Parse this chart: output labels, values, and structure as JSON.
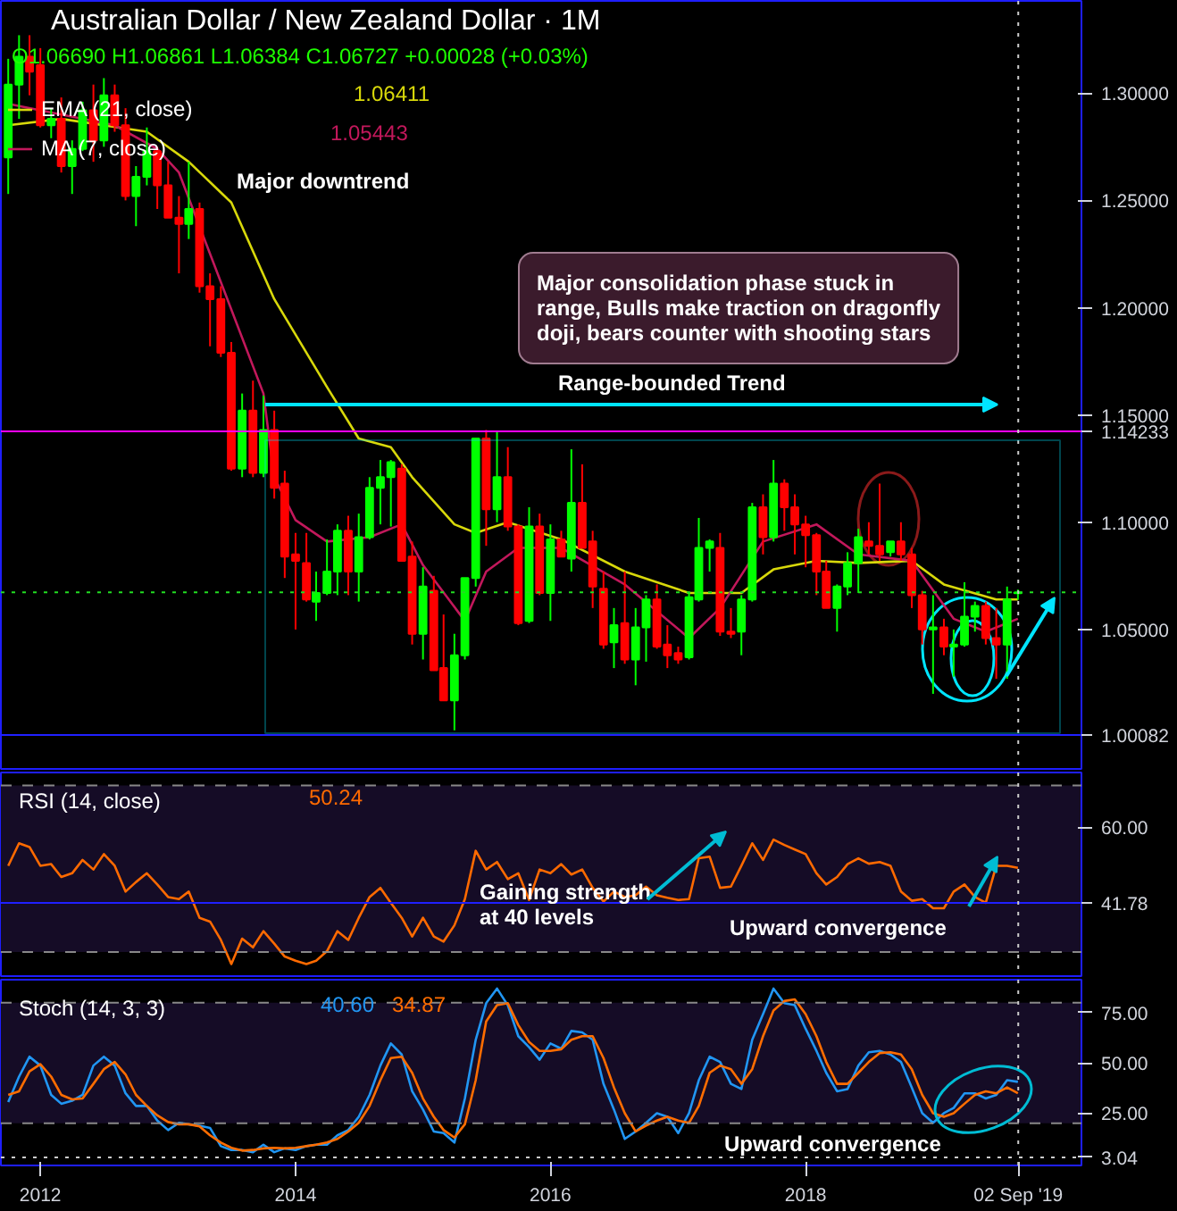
{
  "chart_data": [
    {
      "type": "candlestick",
      "title": "Australian Dollar / New Zealand Dollar · 1M",
      "subtitle": "O1.06690 H1.06861 L1.06384 C1.06727 +0.00028 (+0.03%)",
      "x": [
        "2011-10",
        "2011-11",
        "2011-12",
        "2012-01",
        "2012-02",
        "2012-03",
        "2012-04",
        "2012-05",
        "2012-06",
        "2012-07",
        "2012-08",
        "2012-09",
        "2012-10",
        "2012-11",
        "2012-12",
        "2013-01",
        "2013-02",
        "2013-03",
        "2013-04",
        "2013-05",
        "2013-06",
        "2013-07",
        "2013-08",
        "2013-09",
        "2013-10",
        "2013-11",
        "2013-12",
        "2014-01",
        "2014-02",
        "2014-03",
        "2014-04",
        "2014-05",
        "2014-06",
        "2014-07",
        "2014-08",
        "2014-09",
        "2014-10",
        "2014-11",
        "2014-12",
        "2015-01",
        "2015-02",
        "2015-03",
        "2015-04",
        "2015-05",
        "2015-06",
        "2015-07",
        "2015-08",
        "2015-09",
        "2015-10",
        "2015-11",
        "2015-12",
        "2016-01",
        "2016-02",
        "2016-03",
        "2016-04",
        "2016-05",
        "2016-06",
        "2016-07",
        "2016-08",
        "2016-09",
        "2016-10",
        "2016-11",
        "2016-12",
        "2017-01",
        "2017-02",
        "2017-03",
        "2017-04",
        "2017-05",
        "2017-06",
        "2017-07",
        "2017-08",
        "2017-09",
        "2017-10",
        "2017-11",
        "2017-12",
        "2018-01",
        "2018-02",
        "2018-03",
        "2018-04",
        "2018-05",
        "2018-06",
        "2018-07",
        "2018-08",
        "2018-09",
        "2018-10",
        "2018-11",
        "2018-12",
        "2019-01",
        "2019-02",
        "2019-03",
        "2019-04",
        "2019-05",
        "2019-06",
        "2019-07",
        "2019-08",
        "2019-09"
      ],
      "ohlc": [
        [
          1.27,
          1.316,
          1.253,
          1.304
        ],
        [
          1.304,
          1.327,
          1.288,
          1.317
        ],
        [
          1.317,
          1.327,
          1.299,
          1.31
        ],
        [
          1.313,
          1.321,
          1.284,
          1.285
        ],
        [
          1.285,
          1.293,
          1.279,
          1.288
        ],
        [
          1.288,
          1.298,
          1.263,
          1.266
        ],
        [
          1.266,
          1.278,
          1.253,
          1.274
        ],
        [
          1.274,
          1.296,
          1.273,
          1.292
        ],
        [
          1.292,
          1.304,
          1.268,
          1.278
        ],
        [
          1.278,
          1.307,
          1.275,
          1.299
        ],
        [
          1.299,
          1.304,
          1.282,
          1.285
        ],
        [
          1.285,
          1.293,
          1.25,
          1.252
        ],
        [
          1.252,
          1.266,
          1.238,
          1.261
        ],
        [
          1.261,
          1.284,
          1.257,
          1.273
        ],
        [
          1.273,
          1.275,
          1.246,
          1.257
        ],
        [
          1.257,
          1.268,
          1.242,
          1.242
        ],
        [
          1.242,
          1.252,
          1.216,
          1.239
        ],
        [
          1.239,
          1.268,
          1.232,
          1.246
        ],
        [
          1.246,
          1.249,
          1.207,
          1.21
        ],
        [
          1.21,
          1.216,
          1.182,
          1.204
        ],
        [
          1.204,
          1.21,
          1.177,
          1.179
        ],
        [
          1.179,
          1.184,
          1.124,
          1.125
        ],
        [
          1.125,
          1.16,
          1.121,
          1.152
        ],
        [
          1.152,
          1.166,
          1.121,
          1.123
        ],
        [
          1.123,
          1.159,
          1.121,
          1.143
        ],
        [
          1.143,
          1.152,
          1.111,
          1.116
        ],
        [
          1.118,
          1.124,
          1.074,
          1.084
        ],
        [
          1.085,
          1.095,
          1.05,
          1.082
        ],
        [
          1.081,
          1.095,
          1.063,
          1.064
        ],
        [
          1.063,
          1.077,
          1.054,
          1.067
        ],
        [
          1.067,
          1.092,
          1.066,
          1.077
        ],
        [
          1.077,
          1.099,
          1.066,
          1.096
        ],
        [
          1.096,
          1.103,
          1.066,
          1.077
        ],
        [
          1.077,
          1.104,
          1.063,
          1.093
        ],
        [
          1.093,
          1.121,
          1.092,
          1.116
        ],
        [
          1.116,
          1.129,
          1.099,
          1.121
        ],
        [
          1.121,
          1.129,
          1.098,
          1.128
        ],
        [
          1.125,
          1.127,
          1.082,
          1.082
        ],
        [
          1.084,
          1.091,
          1.043,
          1.048
        ],
        [
          1.048,
          1.079,
          1.036,
          1.07
        ],
        [
          1.068,
          1.075,
          1.031,
          1.031
        ],
        [
          1.032,
          1.057,
          1.017,
          1.017
        ],
        [
          1.017,
          1.048,
          1.003,
          1.038
        ],
        [
          1.038,
          1.074,
          1.036,
          1.074
        ],
        [
          1.074,
          1.139,
          1.07,
          1.139
        ],
        [
          1.139,
          1.143,
          1.089,
          1.106
        ],
        [
          1.106,
          1.142,
          1.1,
          1.121
        ],
        [
          1.121,
          1.135,
          1.096,
          1.098
        ],
        [
          1.098,
          1.099,
          1.052,
          1.053
        ],
        [
          1.054,
          1.107,
          1.053,
          1.098
        ],
        [
          1.098,
          1.104,
          1.066,
          1.067
        ],
        [
          1.067,
          1.099,
          1.054,
          1.092
        ],
        [
          1.092,
          1.096,
          1.084,
          1.084
        ],
        [
          1.083,
          1.134,
          1.077,
          1.109
        ],
        [
          1.109,
          1.127,
          1.088,
          1.088
        ],
        [
          1.091,
          1.096,
          1.06,
          1.07
        ],
        [
          1.069,
          1.077,
          1.041,
          1.043
        ],
        [
          1.044,
          1.06,
          1.032,
          1.052
        ],
        [
          1.053,
          1.077,
          1.034,
          1.036
        ],
        [
          1.036,
          1.06,
          1.024,
          1.051
        ],
        [
          1.051,
          1.066,
          1.035,
          1.064
        ],
        [
          1.064,
          1.071,
          1.041,
          1.042
        ],
        [
          1.043,
          1.052,
          1.032,
          1.038
        ],
        [
          1.039,
          1.042,
          1.034,
          1.036
        ],
        [
          1.037,
          1.067,
          1.036,
          1.065
        ],
        [
          1.064,
          1.102,
          1.063,
          1.088
        ],
        [
          1.088,
          1.092,
          1.077,
          1.091
        ],
        [
          1.088,
          1.095,
          1.047,
          1.049
        ],
        [
          1.049,
          1.06,
          1.046,
          1.048
        ],
        [
          1.049,
          1.066,
          1.038,
          1.064
        ],
        [
          1.064,
          1.109,
          1.063,
          1.107
        ],
        [
          1.107,
          1.113,
          1.085,
          1.093
        ],
        [
          1.093,
          1.129,
          1.091,
          1.118
        ],
        [
          1.118,
          1.12,
          1.096,
          1.107
        ],
        [
          1.107,
          1.113,
          1.085,
          1.099
        ],
        [
          1.099,
          1.103,
          1.079,
          1.094
        ],
        [
          1.094,
          1.095,
          1.066,
          1.077
        ],
        [
          1.077,
          1.082,
          1.06,
          1.06
        ],
        [
          1.06,
          1.071,
          1.049,
          1.07
        ],
        [
          1.07,
          1.086,
          1.066,
          1.081
        ],
        [
          1.081,
          1.097,
          1.067,
          1.093
        ],
        [
          1.091,
          1.1,
          1.085,
          1.089
        ],
        [
          1.089,
          1.118,
          1.082,
          1.085
        ],
        [
          1.086,
          1.091,
          1.084,
          1.091
        ],
        [
          1.091,
          1.1,
          1.082,
          1.085
        ],
        [
          1.085,
          1.088,
          1.06,
          1.066
        ],
        [
          1.066,
          1.068,
          1.043,
          1.05
        ],
        [
          1.05,
          1.066,
          1.02,
          1.051
        ],
        [
          1.051,
          1.055,
          1.038,
          1.042
        ],
        [
          1.042,
          1.05,
          1.028,
          1.043
        ],
        [
          1.043,
          1.072,
          1.042,
          1.056
        ],
        [
          1.056,
          1.063,
          1.049,
          1.061
        ],
        [
          1.061,
          1.063,
          1.043,
          1.046
        ],
        [
          1.046,
          1.06,
          1.027,
          1.043
        ],
        [
          1.043,
          1.07,
          1.027,
          1.064
        ],
        [
          1.0669,
          1.0686,
          1.0638,
          1.0673
        ]
      ],
      "colors": [
        "#00ff00",
        "#00ff00",
        "#ff0000",
        "#ff0000",
        "#00ff00",
        "#ff0000",
        "#00ff00",
        "#00ff00",
        "#ff0000",
        "#00ff00",
        "#ff0000",
        "#ff0000",
        "#00ff00",
        "#00ff00",
        "#ff0000",
        "#ff0000",
        "#ff0000",
        "#00ff00",
        "#ff0000",
        "#ff0000",
        "#ff0000",
        "#ff0000",
        "#00ff00",
        "#ff0000",
        "#00ff00",
        "#ff0000",
        "#ff0000",
        "#ff0000",
        "#ff0000",
        "#00ff00",
        "#00ff00",
        "#00ff00",
        "#ff0000",
        "#00ff00",
        "#00ff00",
        "#00ff00",
        "#00ff00",
        "#ff0000",
        "#ff0000",
        "#00ff00",
        "#ff0000",
        "#ff0000",
        "#00ff00",
        "#00ff00",
        "#00ff00",
        "#ff0000",
        "#00ff00",
        "#ff0000",
        "#ff0000",
        "#00ff00",
        "#ff0000",
        "#00ff00",
        "#ff0000",
        "#00ff00",
        "#ff0000",
        "#ff0000",
        "#ff0000",
        "#00ff00",
        "#ff0000",
        "#00ff00",
        "#00ff00",
        "#ff0000",
        "#ff0000",
        "#ff0000",
        "#00ff00",
        "#00ff00",
        "#00ff00",
        "#ff0000",
        "#ff0000",
        "#00ff00",
        "#00ff00",
        "#ff0000",
        "#00ff00",
        "#ff0000",
        "#ff0000",
        "#ff0000",
        "#ff0000",
        "#ff0000",
        "#00ff00",
        "#00ff00",
        "#00ff00",
        "#ff0000",
        "#ff0000",
        "#00ff00",
        "#ff0000",
        "#ff0000",
        "#ff0000",
        "#00ff00",
        "#ff0000",
        "#00ff00",
        "#00ff00",
        "#00ff00",
        "#ff0000",
        "#ff0000",
        "#00ff00",
        "#00ff00"
      ],
      "series": [
        {
          "name": "EMA (21, close)",
          "type": "line",
          "color": "#d8d80a",
          "x": [
            "2011-10",
            "2012-03",
            "2012-11",
            "2013-03",
            "2013-07",
            "2013-11",
            "2014-04",
            "2014-07",
            "2014-10",
            "2014-12",
            "2015-04",
            "2015-06",
            "2015-09",
            "2016-02",
            "2016-08",
            "2017-02",
            "2017-07",
            "2017-10",
            "2018-02",
            "2018-06",
            "2018-11",
            "2019-02",
            "2019-07",
            "2019-09"
          ],
          "values": [
            1.285,
            1.288,
            1.282,
            1.268,
            1.249,
            1.204,
            1.163,
            1.139,
            1.135,
            1.121,
            1.099,
            1.095,
            1.1,
            1.092,
            1.077,
            1.067,
            1.067,
            1.078,
            1.082,
            1.081,
            1.082,
            1.071,
            1.064,
            1.064
          ]
        },
        {
          "name": "MA (7, close)",
          "type": "line",
          "color": "#c2185b",
          "x": [
            "2011-10",
            "2012-03",
            "2012-08",
            "2012-12",
            "2013-02",
            "2013-10",
            "2013-11",
            "2014-01",
            "2014-04",
            "2014-08",
            "2014-11",
            "2015-01",
            "2015-05",
            "2015-07",
            "2015-10",
            "2016-02",
            "2016-08",
            "2017-02",
            "2017-05",
            "2017-09",
            "2018-02",
            "2018-06",
            "2018-11",
            "2019-03",
            "2019-06",
            "2019-09"
          ],
          "values": [
            1.295,
            1.29,
            1.285,
            1.274,
            1.263,
            1.16,
            1.121,
            1.101,
            1.091,
            1.093,
            1.099,
            1.08,
            1.054,
            1.077,
            1.088,
            1.088,
            1.071,
            1.046,
            1.06,
            1.091,
            1.099,
            1.085,
            1.082,
            1.055,
            1.049,
            1.055
          ]
        }
      ],
      "annotations": [
        "1.06411",
        "1.05443",
        "Major downtrend",
        "Range-bounded Trend",
        "Major consolidation phase stuck in range, Bulls make traction on dragonfly doji, bears counter with shooting stars"
      ],
      "ref_lines": [
        {
          "axis": "y",
          "value": 1.14233,
          "label": "1.14233",
          "color": "#ff00ff",
          "line_style": "solid"
        },
        {
          "axis": "y",
          "value": 1.00082,
          "label": "1.00082",
          "color": "#2020ff",
          "line_style": "solid"
        },
        {
          "axis": "y",
          "value": 1.06727,
          "color": "#22dd22",
          "line_style": "dotted"
        },
        {
          "axis": "x",
          "value": "2019-09-02",
          "color": "#cccccc",
          "line_style": "dotted"
        }
      ],
      "xlim": [
        "2011-09-10",
        "2020-03-01"
      ],
      "ylim": [
        0.985,
        1.343
      ],
      "yticks": [
        {
          "value": 1.05,
          "label": "1.05000"
        },
        {
          "value": 1.1,
          "label": "1.10000"
        },
        {
          "value": 1.15,
          "label": "1.15000"
        },
        {
          "value": 1.2,
          "label": "1.20000"
        },
        {
          "value": 1.25,
          "label": "1.25000"
        },
        {
          "value": 1.3,
          "label": "1.30000"
        }
      ],
      "tick_labels": "y",
      "legend": "top left",
      "line_style": "solid"
    },
    {
      "type": "line",
      "title": "RSI (14, close)",
      "x": [
        "2011-10",
        "2011-11",
        "2011-12",
        "2012-01",
        "2012-02",
        "2012-03",
        "2012-04",
        "2012-05",
        "2012-06",
        "2012-07",
        "2012-08",
        "2012-09",
        "2012-10",
        "2012-11",
        "2012-12",
        "2013-01",
        "2013-02",
        "2013-03",
        "2013-04",
        "2013-05",
        "2013-06",
        "2013-07",
        "2013-08",
        "2013-09",
        "2013-10",
        "2013-11",
        "2013-12",
        "2014-01",
        "2014-02",
        "2014-03",
        "2014-04",
        "2014-05",
        "2014-06",
        "2014-07",
        "2014-08",
        "2014-09",
        "2014-10",
        "2014-11",
        "2014-12",
        "2015-01",
        "2015-02",
        "2015-03",
        "2015-04",
        "2015-05",
        "2015-06",
        "2015-07",
        "2015-08",
        "2015-09",
        "2015-10",
        "2015-11",
        "2015-12",
        "2016-01",
        "2016-02",
        "2016-03",
        "2016-04",
        "2016-05",
        "2016-06",
        "2016-07",
        "2016-08",
        "2016-09",
        "2016-10",
        "2016-11",
        "2016-12",
        "2017-01",
        "2017-02",
        "2017-03",
        "2017-04",
        "2017-05",
        "2017-06",
        "2017-07",
        "2017-08",
        "2017-09",
        "2017-10",
        "2017-11",
        "2017-12",
        "2018-01",
        "2018-02",
        "2018-03",
        "2018-04",
        "2018-05",
        "2018-06",
        "2018-07",
        "2018-08",
        "2018-09",
        "2018-10",
        "2018-11",
        "2018-12",
        "2019-01",
        "2019-02",
        "2019-03",
        "2019-04",
        "2019-05",
        "2019-06",
        "2019-07",
        "2019-08",
        "2019-09"
      ],
      "series": [
        {
          "color": "#ff6a00",
          "values": [
            50.7,
            56.1,
            55.2,
            50.7,
            51.1,
            48.0,
            48.9,
            52.1,
            49.8,
            53.5,
            50.7,
            44.5,
            46.8,
            48.9,
            46.2,
            43.2,
            42.7,
            44.5,
            38.2,
            37.3,
            32.9,
            27.1,
            33.2,
            31.1,
            35.0,
            32.0,
            28.9,
            27.9,
            27.1,
            27.9,
            30.2,
            35.0,
            32.9,
            38.2,
            43.2,
            45.4,
            41.8,
            38.2,
            33.7,
            38.2,
            33.7,
            32.5,
            36.4,
            42.7,
            54.3,
            49.8,
            51.6,
            47.5,
            48.9,
            42.5,
            49.8,
            48.9,
            51.1,
            48.6,
            49.8,
            45.4,
            42.1,
            44.5,
            43.2,
            43.6,
            45.7,
            43.6,
            43.0,
            42.5,
            42.7,
            52.5,
            52.9,
            45.4,
            45.7,
            50.7,
            56.1,
            52.1,
            57.0,
            55.7,
            54.6,
            53.5,
            48.9,
            46.2,
            48.0,
            51.1,
            52.5,
            51.2,
            51.6,
            50.7,
            44.5,
            42.3,
            42.7,
            40.5,
            40.5,
            44.5,
            46.2,
            43.2,
            41.8,
            50.7,
            50.7,
            50.2
          ]
        }
      ],
      "annotations": [
        "50.24",
        "Gaining strength at 40 levels",
        "Upward convergence"
      ],
      "bands": [
        {
          "axis": "y",
          "from": 30,
          "to": 70,
          "color": "#150c26"
        }
      ],
      "ref_lines": [
        {
          "axis": "y",
          "value": 70,
          "color": "#888888",
          "line_style": "dashed"
        },
        {
          "axis": "y",
          "value": 30,
          "color": "#888888",
          "line_style": "dashed"
        },
        {
          "axis": "y",
          "value": 41.78,
          "color": "#2020ff",
          "line_style": "solid"
        },
        {
          "axis": "x",
          "value": "2019-09-02",
          "color": "#cccccc",
          "line_style": "dotted"
        }
      ],
      "xlim": [
        "2011-09-10",
        "2020-03-01"
      ],
      "ylim": [
        24.2,
        73.1
      ],
      "yticks": [
        {
          "value": 41.78,
          "label": "41.78"
        },
        {
          "value": 60,
          "label": "60.00"
        }
      ],
      "tick_labels": "y",
      "line_style": "solid"
    },
    {
      "type": "line",
      "title": "Stoch (14, 3, 3)",
      "x": [
        "2011-10",
        "2011-11",
        "2011-12",
        "2012-01",
        "2012-02",
        "2012-03",
        "2012-04",
        "2012-05",
        "2012-06",
        "2012-07",
        "2012-08",
        "2012-09",
        "2012-10",
        "2012-11",
        "2012-12",
        "2013-01",
        "2013-02",
        "2013-03",
        "2013-04",
        "2013-05",
        "2013-06",
        "2013-07",
        "2013-08",
        "2013-09",
        "2013-10",
        "2013-11",
        "2013-12",
        "2014-01",
        "2014-02",
        "2014-03",
        "2014-04",
        "2014-05",
        "2014-06",
        "2014-07",
        "2014-08",
        "2014-09",
        "2014-10",
        "2014-11",
        "2014-12",
        "2015-01",
        "2015-02",
        "2015-03",
        "2015-04",
        "2015-05",
        "2015-06",
        "2015-07",
        "2015-08",
        "2015-09",
        "2015-10",
        "2015-11",
        "2015-12",
        "2016-01",
        "2016-02",
        "2016-03",
        "2016-04",
        "2016-05",
        "2016-06",
        "2016-07",
        "2016-08",
        "2016-09",
        "2016-10",
        "2016-11",
        "2016-12",
        "2017-01",
        "2017-02",
        "2017-03",
        "2017-04",
        "2017-05",
        "2017-06",
        "2017-07",
        "2017-08",
        "2017-09",
        "2017-10",
        "2017-11",
        "2017-12",
        "2018-01",
        "2018-02",
        "2018-03",
        "2018-04",
        "2018-05",
        "2018-06",
        "2018-07",
        "2018-08",
        "2018-09",
        "2018-10",
        "2018-11",
        "2018-12",
        "2019-01",
        "2019-02",
        "2019-03",
        "2019-04",
        "2019-05",
        "2019-06",
        "2019-07",
        "2019-08",
        "2019-09"
      ],
      "series": [
        {
          "color": "#2196f3",
          "values": [
            30.5,
            43.2,
            53.1,
            48.7,
            34.1,
            29.7,
            31.2,
            34.1,
            48.7,
            53.1,
            48.7,
            34.9,
            28.6,
            28.6,
            21.3,
            16.6,
            20.2,
            19.5,
            18.8,
            17.7,
            8.6,
            6.7,
            6.7,
            5.6,
            9.3,
            5.6,
            7.5,
            6.7,
            8.6,
            9.3,
            9.3,
            14.0,
            16.6,
            23.2,
            34.1,
            48.7,
            59.7,
            54.2,
            35.9,
            26.8,
            15.9,
            15.1,
            10.4,
            32.3,
            61.5,
            79.7,
            87.0,
            78.7,
            63.3,
            57.8,
            51.6,
            59.7,
            57.1,
            65.9,
            65.2,
            61.5,
            39.6,
            26.8,
            12.2,
            15.9,
            20.2,
            25.0,
            23.2,
            15.1,
            25.0,
            41.4,
            53.1,
            50.5,
            39.6,
            37.0,
            61.5,
            74.3,
            87.0,
            79.7,
            78.7,
            67.0,
            56.0,
            45.1,
            35.9,
            37.0,
            48.7,
            55.3,
            56.0,
            54.2,
            50.5,
            37.8,
            25.0,
            20.2,
            25.0,
            27.6,
            34.9,
            34.9,
            32.3,
            34.1,
            41.4,
            40.6
          ]
        },
        {
          "color": "#ff6d00",
          "values": [
            34.1,
            35.9,
            45.8,
            49.4,
            43.2,
            34.1,
            31.9,
            32.3,
            39.6,
            46.9,
            50.5,
            44.3,
            34.1,
            28.6,
            23.9,
            20.6,
            19.5,
            19.5,
            18.4,
            14.0,
            10.4,
            7.8,
            6.4,
            6.7,
            7.5,
            7.8,
            7.5,
            7.8,
            8.6,
            9.3,
            10.4,
            12.2,
            15.9,
            20.2,
            28.6,
            41.4,
            52.4,
            53.1,
            45.1,
            32.3,
            23.2,
            16.6,
            12.9,
            19.5,
            41.4,
            70.6,
            78.7,
            79.7,
            68.8,
            60.4,
            56.0,
            56.0,
            56.8,
            61.5,
            63.3,
            63.3,
            52.4,
            37.8,
            25.0,
            15.9,
            18.8,
            21.3,
            23.2,
            21.3,
            20.2,
            28.6,
            45.1,
            48.7,
            46.9,
            39.6,
            46.9,
            63.3,
            76.1,
            80.8,
            81.6,
            74.3,
            63.3,
            50.5,
            39.6,
            39.6,
            45.1,
            50.5,
            54.9,
            55.3,
            54.2,
            46.9,
            34.1,
            25.0,
            23.2,
            25.0,
            29.7,
            34.1,
            35.9,
            34.9,
            37.8,
            34.9
          ]
        }
      ],
      "annotations": [
        "40.60",
        "34.87",
        "Upward convergence"
      ],
      "bands": [
        {
          "axis": "y",
          "from": 20,
          "to": 80,
          "color": "#150c26"
        }
      ],
      "ref_lines": [
        {
          "axis": "y",
          "value": 80,
          "color": "#888888",
          "line_style": "dashed"
        },
        {
          "axis": "y",
          "value": 20,
          "color": "#888888",
          "line_style": "dashed"
        },
        {
          "axis": "y",
          "value": 3.04,
          "label": "3.04",
          "color": "#cccccc",
          "line_style": "dotted"
        },
        {
          "axis": "x",
          "value": "2019-09-02",
          "label": "02 Sep '19",
          "color": "#cccccc",
          "line_style": "dotted"
        }
      ],
      "xlim": [
        "2011-09-10",
        "2020-03-01"
      ],
      "ylim": [
        -1,
        91.4
      ],
      "xticks": [
        "2012",
        "2014",
        "2016",
        "2018"
      ],
      "yticks": [
        {
          "value": 25,
          "label": "25.00"
        },
        {
          "value": 50,
          "label": "50.00"
        },
        {
          "value": 75,
          "label": "75.00"
        }
      ],
      "line_style": "solid"
    }
  ]
}
